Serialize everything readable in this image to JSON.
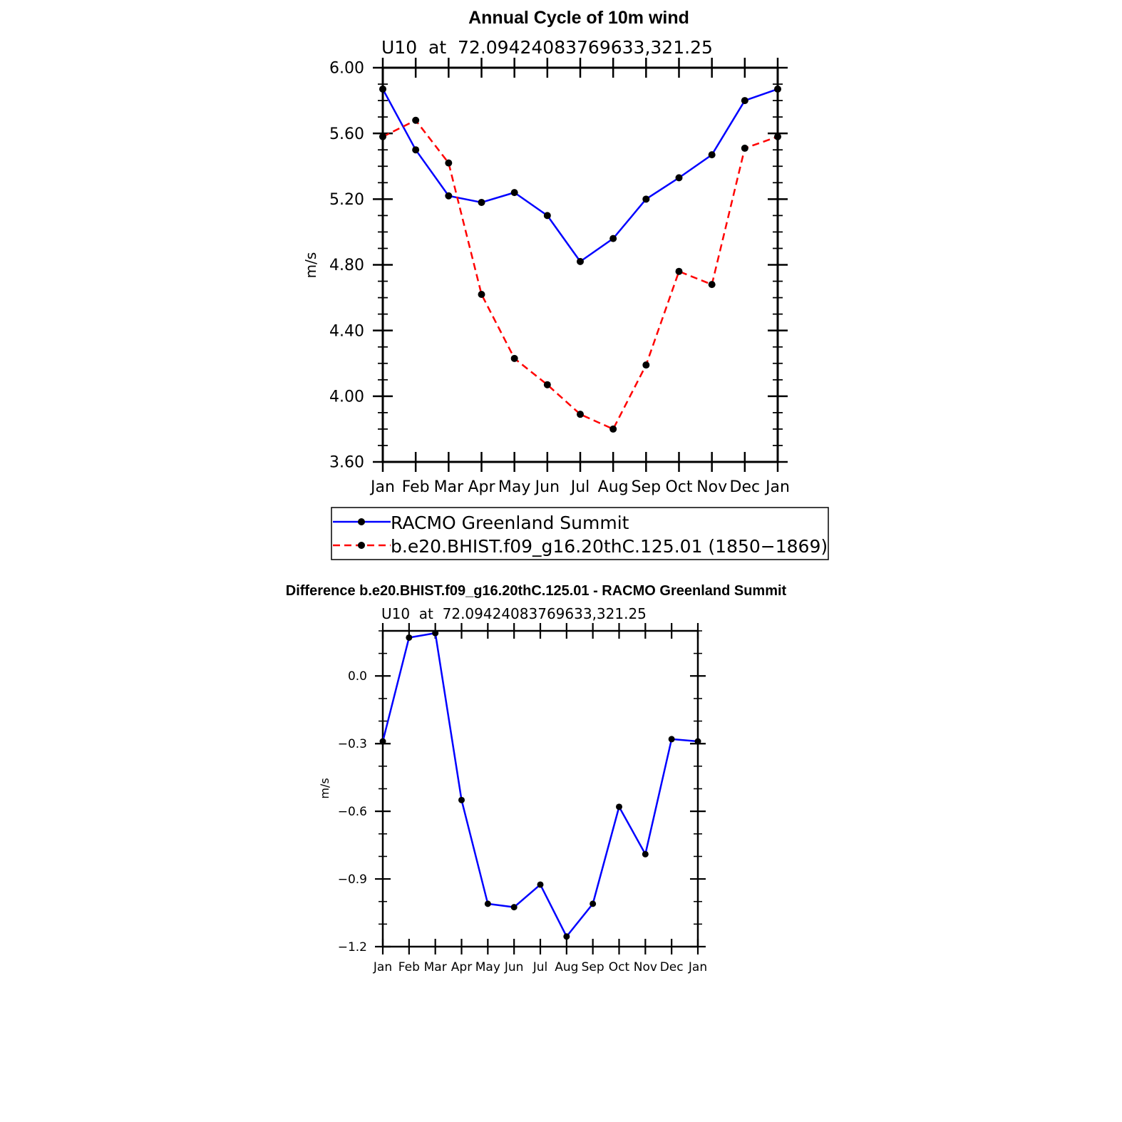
{
  "chart_data": [
    {
      "type": "line",
      "title": "Annual Cycle of 10m wind",
      "subtitle": "U10  at  72.09424083769633,321.25",
      "xlabel": "",
      "ylabel": "m/s",
      "categories": [
        "Jan",
        "Feb",
        "Mar",
        "Apr",
        "May",
        "Jun",
        "Jul",
        "Aug",
        "Sep",
        "Oct",
        "Nov",
        "Dec",
        "Jan"
      ],
      "ylim": [
        3.6,
        6.0
      ],
      "yticks": [
        "3.60",
        "4.00",
        "4.40",
        "4.80",
        "5.20",
        "5.60",
        "6.00"
      ],
      "ytick_values": [
        3.6,
        4.0,
        4.4,
        4.8,
        5.2,
        5.6,
        6.0
      ],
      "grid": false,
      "legend_position": "bottom",
      "series": [
        {
          "name": "RACMO Greenland Summit",
          "color": "#0000ff",
          "style": "solid",
          "values": [
            5.87,
            5.5,
            5.22,
            5.18,
            5.24,
            5.1,
            4.82,
            4.96,
            5.2,
            5.33,
            5.47,
            5.8,
            5.87
          ]
        },
        {
          "name": "b.e20.BHIST.f09_g16.20thC.125.01 (1850−1869)",
          "color": "#ff0000",
          "style": "dashed",
          "values": [
            5.58,
            5.68,
            5.42,
            4.62,
            4.23,
            4.07,
            3.89,
            3.8,
            4.19,
            4.76,
            4.68,
            5.51,
            5.58
          ]
        }
      ]
    },
    {
      "type": "line",
      "title": "Difference b.e20.BHIST.f09_g16.20thC.125.01 - RACMO Greenland Summit",
      "subtitle": "U10  at  72.09424083769633,321.25",
      "xlabel": "",
      "ylabel": "m/s",
      "categories": [
        "Jan",
        "Feb",
        "Mar",
        "Apr",
        "May",
        "Jun",
        "Jul",
        "Aug",
        "Sep",
        "Oct",
        "Nov",
        "Dec",
        "Jan"
      ],
      "ylim": [
        -1.2,
        0.2
      ],
      "yticks": [
        "−1.2",
        "−0.9",
        "−0.6",
        "−0.3",
        "0.0"
      ],
      "ytick_values": [
        -1.2,
        -0.9,
        -0.6,
        -0.3,
        0.0
      ],
      "grid": false,
      "series": [
        {
          "name": "Difference",
          "color": "#0000ff",
          "style": "solid",
          "values": [
            -0.29,
            0.17,
            0.19,
            -0.55,
            -1.01,
            -1.025,
            -0.925,
            -1.155,
            -1.01,
            -0.58,
            -0.79,
            -0.28,
            -0.29
          ]
        }
      ]
    }
  ]
}
